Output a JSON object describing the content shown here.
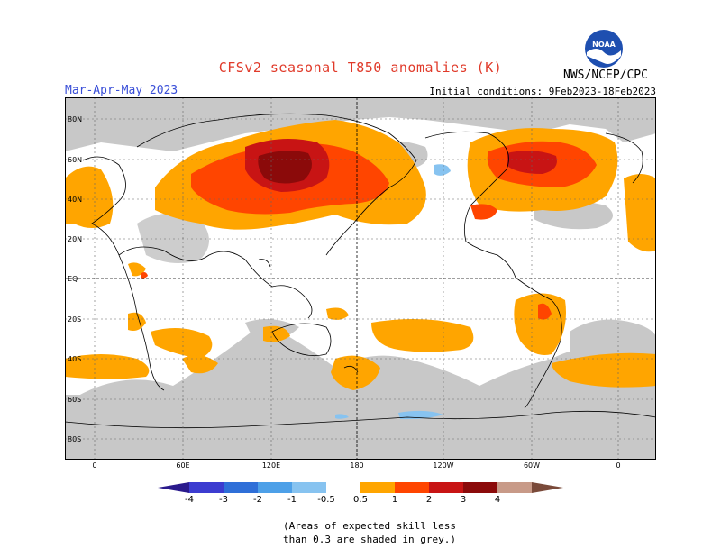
{
  "header": {
    "title": "CFSv2 seasonal T850 anomalies (K)",
    "period": "Mar-Apr-May 2023",
    "initial_conditions": "Initial conditions: 9Feb2023-18Feb2023",
    "agency": "NWS/NCEP/CPC",
    "logo_text": "NOAA"
  },
  "map": {
    "lat_labels": [
      "80N",
      "60N",
      "40N",
      "20N",
      "EQ",
      "20S",
      "40S",
      "60S",
      "80S"
    ],
    "lon_labels": [
      "0",
      "60E",
      "120E",
      "180",
      "120W",
      "60W",
      "0"
    ],
    "colors": {
      "skill_grey": "#c8c8c8",
      "pos_0_5_1": "#ffa500",
      "pos_1_2": "#ff4500",
      "pos_2_3": "#c81414",
      "pos_3_4": "#8b0a0a",
      "neg_0_5_1": "#87c3f0"
    }
  },
  "colorbar": {
    "labels": [
      "-4",
      "-3",
      "-2",
      "-1",
      "-0.5",
      "0.5",
      "1",
      "2",
      "3",
      "4"
    ],
    "colors": [
      "#2a1a8c",
      "#3c3cd0",
      "#2f6fd8",
      "#4da0e8",
      "#87c3f0",
      "#ffffff",
      "#ffa500",
      "#ff4500",
      "#c81414",
      "#8b0a0a",
      "#c89a88",
      "#7a4a3a"
    ]
  },
  "footnote": {
    "line1": "(Areas of expected skill less",
    "line2": "than 0.3 are shaded in grey.)"
  }
}
